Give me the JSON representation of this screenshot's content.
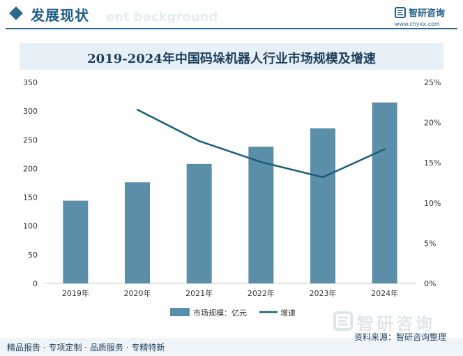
{
  "header": {
    "section_title": "发展现状",
    "ghost_text": "ent background",
    "logo_name": "智研咨询",
    "logo_url": "www.chyxx.com"
  },
  "chart_title": "2019-2024年中国码垛机器人行业市场规模及增速",
  "chart_data": {
    "type": "bar",
    "title": "2019-2024年中国码垛机器人行业市场规模及增速",
    "categories": [
      "2019年",
      "2020年",
      "2021年",
      "2022年",
      "2023年",
      "2024年"
    ],
    "series": [
      {
        "name": "市场规模：亿元",
        "type": "bar",
        "axis": "left",
        "color": "#5b8ea8",
        "values": [
          144,
          176,
          208,
          238,
          270,
          315
        ]
      },
      {
        "name": "增速",
        "type": "line",
        "axis": "right",
        "color": "#1a5e7c",
        "values": [
          null,
          21.6,
          17.7,
          15.1,
          13.2,
          16.7
        ]
      }
    ],
    "y_left": {
      "min": 0,
      "max": 350,
      "ticks": [
        0,
        50,
        100,
        150,
        200,
        250,
        300,
        350
      ]
    },
    "y_right": {
      "min": 0,
      "max": 25,
      "ticks": [
        "0%",
        "5%",
        "10%",
        "15%",
        "20%",
        "25%"
      ]
    },
    "legend_position": "bottom-center",
    "grid": false
  },
  "footer": {
    "left_text": "精品报告 · 专项定制 · 品质服务 · 专精特新",
    "source_text": "资料来源：智研咨询整理"
  },
  "watermark": {
    "text": "智研咨询"
  }
}
